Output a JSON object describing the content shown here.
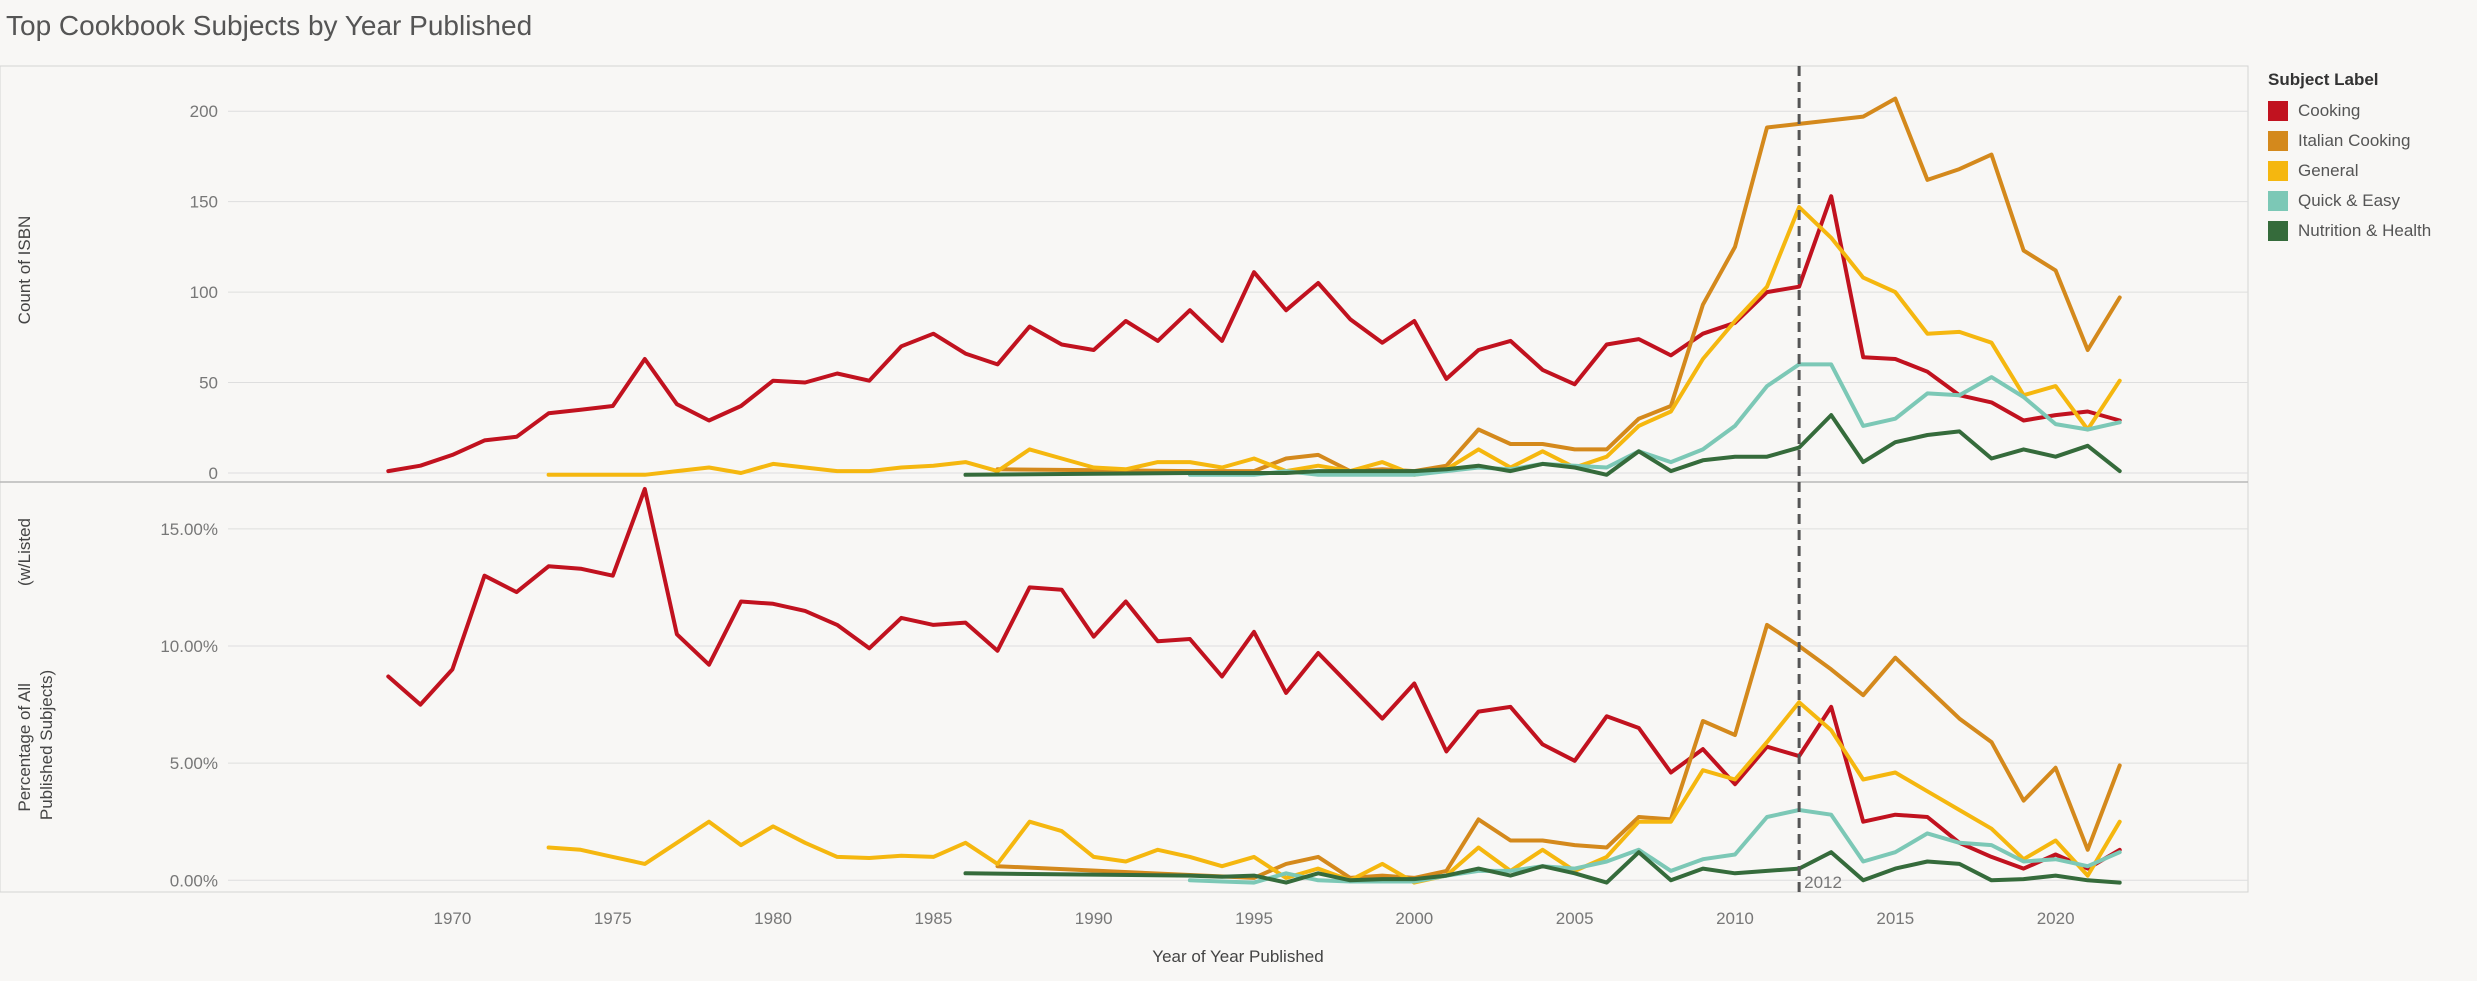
{
  "title": "Top Cookbook Subjects by Year Published",
  "legend_title": "Subject Label",
  "annotation": "2012",
  "chart_data": {
    "type": "line",
    "title": "Top Cookbook Subjects by Year Published",
    "xlabel": "Year of Year Published",
    "xlim": [
      1963,
      2026
    ],
    "x_ticks": [
      1970,
      1975,
      1980,
      1985,
      1990,
      1995,
      2000,
      2005,
      2010,
      2015,
      2020
    ],
    "x_tick_labels": [
      "1970",
      "1975",
      "1980",
      "1985",
      "1990",
      "1995",
      "2000",
      "2005",
      "2010",
      "2015",
      "2020"
    ],
    "reference_line": {
      "x": 2012,
      "label": "2012"
    },
    "legend_position": "right",
    "grid": true,
    "series_styles": [
      {
        "name": "Cooking",
        "color": "#c1121f"
      },
      {
        "name": "Italian Cooking",
        "color": "#d4891c"
      },
      {
        "name": "General",
        "color": "#f5b70f"
      },
      {
        "name": "Quick & Easy",
        "color": "#7cc8b6"
      },
      {
        "name": "Nutrition & Health",
        "color": "#356b3b"
      }
    ],
    "panels": [
      {
        "ylabel": "Count of ISBN",
        "ylim": [
          -5,
          225
        ],
        "y_ticks": [
          0,
          50,
          100,
          150,
          200
        ],
        "y_tick_labels": [
          "0",
          "50",
          "100",
          "150",
          "200"
        ],
        "series": [
          {
            "name": "Cooking",
            "x": [
              1968,
              1969,
              1970,
              1971,
              1972,
              1973,
              1974,
              1975,
              1976,
              1977,
              1978,
              1979,
              1980,
              1981,
              1982,
              1983,
              1984,
              1985,
              1986,
              1987,
              1988,
              1989,
              1990,
              1991,
              1992,
              1993,
              1994,
              1995,
              1996,
              1997,
              1998,
              1999,
              2000,
              2001,
              2002,
              2003,
              2004,
              2005,
              2006,
              2007,
              2008,
              2009,
              2010,
              2011,
              2012,
              2013,
              2014,
              2015,
              2016,
              2017,
              2018,
              2019,
              2020,
              2021,
              2022
            ],
            "y": [
              1,
              4,
              10,
              18,
              20,
              33,
              35,
              37,
              63,
              38,
              29,
              37,
              51,
              50,
              55,
              51,
              70,
              77,
              66,
              60,
              81,
              71,
              68,
              84,
              73,
              90,
              73,
              111,
              90,
              105,
              85,
              72,
              84,
              52,
              68,
              73,
              57,
              49,
              71,
              74,
              65,
              77,
              83,
              100,
              103,
              153,
              64,
              63,
              56,
              43,
              39,
              29,
              32,
              34,
              29
            ]
          },
          {
            "name": "Italian Cooking",
            "x": [
              1987,
              1993,
              1994,
              1995,
              1996,
              1997,
              1998,
              1999,
              2000,
              2001,
              2002,
              2003,
              2004,
              2005,
              2006,
              2007,
              2008,
              2009,
              2010,
              2011,
              2012,
              2013,
              2014,
              2015,
              2016,
              2017,
              2018,
              2019,
              2020,
              2021,
              2022
            ],
            "y": [
              2,
              1,
              1,
              1,
              8,
              10,
              1,
              2,
              1,
              4,
              24,
              16,
              16,
              13,
              13,
              30,
              37,
              93,
              125,
              191,
              193,
              195,
              197,
              207,
              162,
              168,
              176,
              123,
              112,
              68,
              97
            ]
          },
          {
            "name": "General",
            "x": [
              1973,
              1974,
              1975,
              1976,
              1977,
              1978,
              1979,
              1980,
              1981,
              1982,
              1983,
              1984,
              1985,
              1986,
              1987,
              1988,
              1989,
              1990,
              1991,
              1992,
              1993,
              1994,
              1995,
              1996,
              1997,
              1998,
              1999,
              2000,
              2001,
              2002,
              2003,
              2004,
              2005,
              2006,
              2007,
              2008,
              2009,
              2010,
              2011,
              2012,
              2013,
              2014,
              2015,
              2016,
              2017,
              2018,
              2019,
              2020,
              2021,
              2022
            ],
            "y": [
              -1,
              -1,
              -1,
              -1,
              1,
              3,
              0,
              5,
              3,
              1,
              1,
              3,
              4,
              6,
              1,
              13,
              8,
              3,
              2,
              6,
              6,
              3,
              8,
              1,
              4,
              1,
              6,
              -1,
              2,
              13,
              3,
              12,
              3,
              9,
              26,
              34,
              63,
              84,
              103,
              147,
              130,
              108,
              100,
              77,
              78,
              72,
              43,
              48,
              24,
              51
            ]
          },
          {
            "name": "Quick & Easy",
            "x": [
              1993,
              1994,
              1995,
              1996,
              1997,
              1998,
              1999,
              2000,
              2001,
              2002,
              2003,
              2004,
              2005,
              2006,
              2007,
              2008,
              2009,
              2010,
              2011,
              2012,
              2013,
              2014,
              2015,
              2016,
              2017,
              2018,
              2019,
              2020,
              2021,
              2022
            ],
            "y": [
              -1,
              -1,
              -1,
              1,
              -1,
              -1,
              -1,
              -1,
              1,
              3,
              2,
              5,
              4,
              3,
              12,
              6,
              13,
              26,
              48,
              60,
              60,
              26,
              30,
              44,
              43,
              53,
              42,
              27,
              24,
              28
            ]
          },
          {
            "name": "Nutrition & Health",
            "x": [
              1986,
              1993,
              1994,
              1995,
              1996,
              1997,
              1998,
              1999,
              2000,
              2001,
              2002,
              2003,
              2004,
              2005,
              2006,
              2007,
              2008,
              2009,
              2010,
              2011,
              2012,
              2013,
              2014,
              2015,
              2016,
              2017,
              2018,
              2019,
              2020,
              2021,
              2022
            ],
            "y": [
              -1,
              0,
              0,
              0,
              0,
              1,
              1,
              1,
              1,
              2,
              4,
              1,
              5,
              3,
              -1,
              12,
              1,
              7,
              9,
              9,
              14,
              32,
              6,
              17,
              21,
              23,
              8,
              13,
              9,
              15,
              1
            ]
          }
        ]
      },
      {
        "ylabel": "Percentage of All Published Subjects)",
        "ylabel_secondary": "(w/Listed",
        "ylim": [
          -0.5,
          17
        ],
        "y_ticks": [
          0,
          5,
          10,
          15
        ],
        "y_tick_labels": [
          "0.00%",
          "5.00%",
          "10.00%",
          "15.00%"
        ],
        "series": [
          {
            "name": "Cooking",
            "x": [
              1968,
              1969,
              1970,
              1971,
              1972,
              1973,
              1974,
              1975,
              1976,
              1977,
              1978,
              1979,
              1980,
              1981,
              1982,
              1983,
              1984,
              1985,
              1986,
              1987,
              1988,
              1989,
              1990,
              1991,
              1992,
              1993,
              1994,
              1995,
              1996,
              1997,
              1998,
              1999,
              2000,
              2001,
              2002,
              2003,
              2004,
              2005,
              2006,
              2007,
              2008,
              2009,
              2010,
              2011,
              2012,
              2013,
              2014,
              2015,
              2016,
              2017,
              2018,
              2019,
              2020,
              2021,
              2022
            ],
            "y": [
              8.7,
              7.5,
              9.0,
              13.0,
              12.3,
              13.4,
              13.3,
              13.0,
              16.7,
              10.5,
              9.2,
              11.9,
              11.8,
              11.5,
              10.9,
              9.9,
              11.2,
              10.9,
              11.0,
              9.8,
              12.5,
              12.4,
              10.4,
              11.9,
              10.2,
              10.3,
              8.7,
              10.6,
              8.0,
              9.7,
              8.3,
              6.9,
              8.4,
              5.5,
              7.2,
              7.4,
              5.8,
              5.1,
              7.0,
              6.5,
              4.6,
              5.6,
              4.1,
              5.7,
              5.3,
              7.4,
              2.5,
              2.8,
              2.7,
              1.6,
              1.0,
              0.5,
              1.1,
              0.5,
              1.3
            ]
          },
          {
            "name": "Italian Cooking",
            "x": [
              1987,
              1995,
              1996,
              1997,
              1998,
              1999,
              2000,
              2001,
              2002,
              2003,
              2004,
              2005,
              2006,
              2007,
              2008,
              2009,
              2010,
              2011,
              2012,
              2013,
              2014,
              2015,
              2016,
              2017,
              2018,
              2019,
              2020,
              2021,
              2022
            ],
            "y": [
              0.6,
              0.1,
              0.7,
              1.0,
              0.1,
              0.2,
              0.1,
              0.4,
              2.6,
              1.7,
              1.7,
              1.5,
              1.4,
              2.7,
              2.6,
              6.8,
              6.2,
              10.9,
              10.0,
              9.0,
              7.9,
              9.5,
              8.2,
              6.9,
              5.9,
              3.4,
              4.8,
              1.3,
              4.9
            ]
          },
          {
            "name": "General",
            "x": [
              1973,
              1974,
              1975,
              1976,
              1977,
              1978,
              1979,
              1980,
              1981,
              1982,
              1983,
              1984,
              1985,
              1986,
              1987,
              1988,
              1989,
              1990,
              1991,
              1992,
              1993,
              1994,
              1995,
              1996,
              1997,
              1998,
              1999,
              2000,
              2001,
              2002,
              2003,
              2004,
              2005,
              2006,
              2007,
              2008,
              2009,
              2010,
              2011,
              2012,
              2013,
              2014,
              2015,
              2016,
              2017,
              2018,
              2019,
              2020,
              2021,
              2022
            ],
            "y": [
              1.4,
              1.3,
              1.0,
              0.7,
              1.6,
              2.5,
              1.5,
              2.3,
              1.6,
              1.0,
              0.95,
              1.05,
              1.0,
              1.6,
              0.7,
              2.5,
              2.1,
              1.0,
              0.8,
              1.3,
              1.0,
              0.6,
              1.0,
              0.1,
              0.5,
              0.0,
              0.7,
              -0.1,
              0.2,
              1.4,
              0.4,
              1.3,
              0.4,
              1.0,
              2.5,
              2.5,
              4.7,
              4.3,
              5.9,
              7.6,
              6.4,
              4.3,
              4.6,
              3.8,
              3.0,
              2.2,
              0.9,
              1.7,
              0.2,
              2.5
            ]
          },
          {
            "name": "Quick & Easy",
            "x": [
              1993,
              1994,
              1995,
              1996,
              1997,
              1998,
              1999,
              2000,
              2001,
              2002,
              2003,
              2004,
              2005,
              2006,
              2007,
              2008,
              2009,
              2010,
              2011,
              2012,
              2013,
              2014,
              2015,
              2016,
              2017,
              2018,
              2019,
              2020,
              2021,
              2022
            ],
            "y": [
              0.0,
              -0.05,
              -0.1,
              0.3,
              0.0,
              -0.05,
              -0.05,
              -0.05,
              0.2,
              0.4,
              0.4,
              0.6,
              0.5,
              0.8,
              1.3,
              0.4,
              0.9,
              1.1,
              2.7,
              3.0,
              2.8,
              0.8,
              1.2,
              2.0,
              1.6,
              1.5,
              0.8,
              0.9,
              0.6,
              1.2
            ]
          },
          {
            "name": "Nutrition & Health",
            "x": [
              1986,
              1993,
              1994,
              1995,
              1996,
              1997,
              1998,
              1999,
              2000,
              2001,
              2002,
              2003,
              2004,
              2005,
              2006,
              2007,
              2008,
              2009,
              2010,
              2011,
              2012,
              2013,
              2014,
              2015,
              2016,
              2017,
              2018,
              2019,
              2020,
              2021,
              2022
            ],
            "y": [
              0.3,
              0.2,
              0.15,
              0.2,
              -0.1,
              0.3,
              0.0,
              0.05,
              0.05,
              0.2,
              0.5,
              0.2,
              0.6,
              0.3,
              -0.1,
              1.2,
              0.0,
              0.5,
              0.3,
              0.4,
              0.5,
              1.2,
              0.0,
              0.5,
              0.8,
              0.7,
              0.0,
              0.05,
              0.2,
              0.0,
              -0.1
            ]
          }
        ]
      }
    ]
  }
}
